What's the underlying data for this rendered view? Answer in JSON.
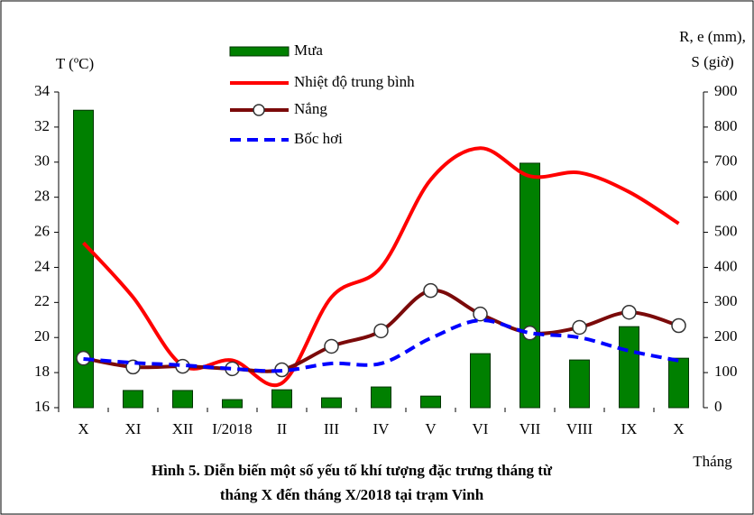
{
  "chart_data": {
    "type": "bar-line",
    "title_lines": [
      "Hình 5. Diễn biến một số yếu tố khí tượng đặc trưng tháng từ",
      "tháng X đến tháng X/2018 tại trạm Vinh"
    ],
    "y_label": "T (ºC)",
    "y2_label_lines": [
      "R, e (mm),",
      "S (giờ)"
    ],
    "x_label": "Tháng",
    "categories": [
      "X",
      "XI",
      "XII",
      "I/2018",
      "II",
      "III",
      "IV",
      "V",
      "VI",
      "VII",
      "VIII",
      "IX",
      "X"
    ],
    "ylim": [
      16,
      34
    ],
    "yticks": [
      16,
      18,
      20,
      22,
      24,
      26,
      28,
      30,
      32,
      34
    ],
    "y2lim": [
      0,
      900
    ],
    "y2ticks": [
      0,
      100,
      200,
      300,
      400,
      500,
      600,
      700,
      800,
      900
    ],
    "series": [
      {
        "name": "Mưa",
        "kind": "bar",
        "axis": "y2",
        "color": "#008000",
        "values": [
          848,
          49,
          49,
          23,
          51,
          28,
          59,
          33,
          154,
          697,
          136,
          231,
          141
        ]
      },
      {
        "name": "Nhiệt độ trung bình",
        "kind": "line",
        "axis": "y",
        "color": "#ff0000",
        "values": [
          25.4,
          22.3,
          18.4,
          18.7,
          17.4,
          22.3,
          24.0,
          29.0,
          30.8,
          29.2,
          29.4,
          28.3,
          26.5
        ]
      },
      {
        "name": "Nắng",
        "kind": "line-marker",
        "axis": "y2",
        "color": "#7b0a0a",
        "values": [
          141,
          116,
          118,
          111,
          108,
          175,
          219,
          334,
          267,
          213,
          229,
          272,
          234
        ]
      },
      {
        "name": "Bốc hơi",
        "kind": "dashed",
        "axis": "y2",
        "color": "#0000ff",
        "values": [
          139,
          128,
          121,
          111,
          105,
          126,
          126,
          198,
          249,
          213,
          200,
          162,
          134
        ]
      }
    ]
  }
}
